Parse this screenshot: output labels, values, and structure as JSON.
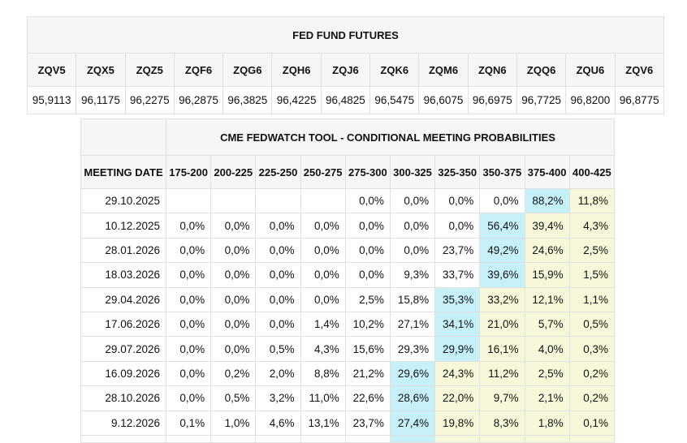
{
  "futures_table": {
    "title": "FED FUND FUTURES",
    "columns": [
      "ZQV5",
      "ZQX5",
      "ZQZ5",
      "ZQF6",
      "ZQG6",
      "ZQH6",
      "ZQJ6",
      "ZQK6",
      "ZQM6",
      "ZQN6",
      "ZQQ6",
      "ZQU6",
      "ZQV6"
    ],
    "values": [
      "95,9113",
      "96,1175",
      "96,2275",
      "96,2875",
      "96,3825",
      "96,4225",
      "96,4825",
      "96,5475",
      "96,6075",
      "96,6975",
      "96,7725",
      "96,8200",
      "96,8775"
    ]
  },
  "fedwatch_table": {
    "title": "CME FEDWATCH TOOL - CONDITIONAL MEETING PROBABILITIES",
    "date_header": "MEETING DATE",
    "rate_columns": [
      "175-200",
      "200-225",
      "225-250",
      "250-275",
      "275-300",
      "300-325",
      "325-350",
      "350-375",
      "375-400",
      "400-425"
    ],
    "rows": [
      {
        "date": "29.10.2025",
        "values": [
          "",
          "",
          "",
          "",
          "0,0%",
          "0,0%",
          "0,0%",
          "0,0%",
          "88,2%",
          "11,8%"
        ],
        "highlights": [
          "",
          "",
          "",
          "",
          "",
          "",
          "",
          "",
          "cyan",
          "yellow"
        ]
      },
      {
        "date": "10.12.2025",
        "values": [
          "0,0%",
          "0,0%",
          "0,0%",
          "0,0%",
          "0,0%",
          "0,0%",
          "0,0%",
          "56,4%",
          "39,4%",
          "4,3%"
        ],
        "highlights": [
          "",
          "",
          "",
          "",
          "",
          "",
          "",
          "cyan",
          "yellow",
          "yellow"
        ]
      },
      {
        "date": "28.01.2026",
        "values": [
          "0,0%",
          "0,0%",
          "0,0%",
          "0,0%",
          "0,0%",
          "0,0%",
          "23,7%",
          "49,2%",
          "24,6%",
          "2,5%"
        ],
        "highlights": [
          "",
          "",
          "",
          "",
          "",
          "",
          "",
          "cyan",
          "yellow",
          "yellow"
        ]
      },
      {
        "date": "18.03.2026",
        "values": [
          "0,0%",
          "0,0%",
          "0,0%",
          "0,0%",
          "0,0%",
          "9,3%",
          "33,7%",
          "39,6%",
          "15,9%",
          "1,5%"
        ],
        "highlights": [
          "",
          "",
          "",
          "",
          "",
          "",
          "",
          "cyan",
          "yellow",
          "yellow"
        ]
      },
      {
        "date": "29.04.2026",
        "values": [
          "0,0%",
          "0,0%",
          "0,0%",
          "0,0%",
          "2,5%",
          "15,8%",
          "35,3%",
          "33,2%",
          "12,1%",
          "1,1%"
        ],
        "highlights": [
          "",
          "",
          "",
          "",
          "",
          "",
          "cyan",
          "yellow",
          "yellow",
          "yellow"
        ]
      },
      {
        "date": "17.06.2026",
        "values": [
          "0,0%",
          "0,0%",
          "0,0%",
          "1,4%",
          "10,2%",
          "27,1%",
          "34,1%",
          "21,0%",
          "5,7%",
          "0,5%"
        ],
        "highlights": [
          "",
          "",
          "",
          "",
          "",
          "",
          "cyan",
          "yellow",
          "yellow",
          "yellow"
        ]
      },
      {
        "date": "29.07.2026",
        "values": [
          "0,0%",
          "0,0%",
          "0,5%",
          "4,3%",
          "15,6%",
          "29,3%",
          "29,9%",
          "16,1%",
          "4,0%",
          "0,3%"
        ],
        "highlights": [
          "",
          "",
          "",
          "",
          "",
          "",
          "cyan",
          "yellow",
          "yellow",
          "yellow"
        ]
      },
      {
        "date": "16.09.2026",
        "values": [
          "0,0%",
          "0,2%",
          "2,0%",
          "8,8%",
          "21,2%",
          "29,6%",
          "24,3%",
          "11,2%",
          "2,5%",
          "0,2%"
        ],
        "highlights": [
          "",
          "",
          "",
          "",
          "",
          "cyan",
          "yellow",
          "yellow",
          "yellow",
          "yellow"
        ]
      },
      {
        "date": "28.10.2026",
        "values": [
          "0,0%",
          "0,5%",
          "3,2%",
          "11,0%",
          "22,6%",
          "28,6%",
          "22,0%",
          "9,7%",
          "2,1%",
          "0,2%"
        ],
        "highlights": [
          "",
          "",
          "",
          "",
          "",
          "cyan",
          "yellow",
          "yellow",
          "yellow",
          "yellow"
        ]
      },
      {
        "date": "9.12.2026",
        "values": [
          "0,1%",
          "1,0%",
          "4,6%",
          "13,1%",
          "23,7%",
          "27,4%",
          "19,8%",
          "8,3%",
          "1,8%",
          "0,1%"
        ],
        "highlights": [
          "",
          "",
          "",
          "",
          "",
          "cyan",
          "yellow",
          "yellow",
          "yellow",
          "yellow"
        ]
      }
    ],
    "partial_row_highlights": [
      "",
      "",
      "",
      "",
      "",
      "cyan",
      "yellow",
      "yellow",
      "yellow",
      "yellow"
    ],
    "colors": {
      "highlight_cyan": "#c6f1f9",
      "highlight_yellow": "#f7f7d9",
      "header_bg": "#f6f6f6",
      "border": "#e0e0e0"
    }
  }
}
